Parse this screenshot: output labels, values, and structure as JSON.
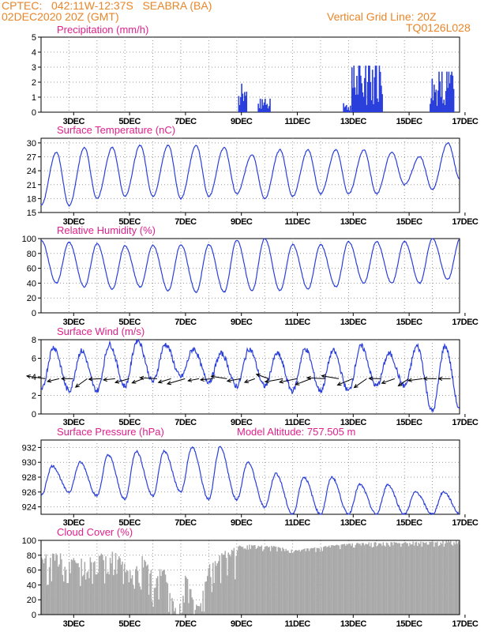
{
  "header": {
    "line1_left": "CPTEC:   042:11W-12:37S   SEABRA (BA)",
    "line2_left": "02DEC2020 20Z (GMT)",
    "line1_right": "Vertical Grid Line: 20Z",
    "line2_right": "TQ0126L028"
  },
  "colors": {
    "header": "#e8862a",
    "title": "#e0208c",
    "series": "#2a3fdc",
    "cloud": "#a9a9a9",
    "grid": "#9a9a9a"
  },
  "date_ticks": [
    "3DEC",
    "5DEC",
    "7DEC",
    "9DEC",
    "11DEC",
    "13DEC",
    "15DEC",
    "17DEC"
  ],
  "model_altitude": "Model Altitude: 757.505 m",
  "chart_data": [
    {
      "type": "bar",
      "title": "Precipitation (mm/h)",
      "ylim": [
        0,
        5
      ],
      "yticks": [
        "0",
        "1",
        "2",
        "3",
        "4",
        "5"
      ],
      "x": [
        "9DEC",
        "9DEC",
        "10DEC",
        "10DEC",
        "13DEC",
        "14DEC",
        "14DEC",
        "16DEC",
        "16DEC"
      ],
      "values": [
        1.3,
        1.9,
        0.9,
        0.7,
        0.6,
        1.5,
        3.1,
        1.6,
        2.7
      ]
    },
    {
      "type": "line",
      "title": "Surface Temperature (nC)",
      "ylim": [
        15,
        31
      ],
      "yticks": [
        "15",
        "18",
        "21",
        "24",
        "27",
        "30"
      ],
      "daily_max": [
        28,
        29,
        29,
        29.5,
        29.5,
        29.5,
        29,
        27.5,
        28.5,
        28.5,
        28.5,
        28.5,
        28,
        27,
        30
      ],
      "daily_min": [
        16.5,
        16.5,
        18,
        18.5,
        18.5,
        18,
        18.5,
        19,
        18,
        18.5,
        19,
        19,
        19,
        21,
        20,
        22
      ]
    },
    {
      "type": "line",
      "title": "Relative Humidity (%)",
      "ylim": [
        0,
        100
      ],
      "yticks": [
        "0",
        "20",
        "40",
        "60",
        "80",
        "100"
      ],
      "daily_max": [
        98,
        95,
        93,
        90,
        91,
        92,
        92,
        98,
        100,
        92,
        92,
        96,
        96,
        96,
        100
      ],
      "daily_min": [
        40,
        35,
        32,
        35,
        30,
        28,
        28,
        30,
        30,
        32,
        35,
        40,
        40,
        40,
        45,
        62
      ]
    },
    {
      "type": "line",
      "title": "Surface Wind (m/s)",
      "ylim": [
        0,
        8
      ],
      "yticks": [
        "0",
        "2",
        "4",
        "6",
        "8"
      ],
      "daily_max": [
        7.2,
        6.8,
        7.5,
        8,
        7.5,
        7,
        6.5,
        7,
        6.5,
        7,
        6.8,
        7.3,
        6.5,
        7.3
      ],
      "daily_min": [
        2.5,
        2.5,
        2.5,
        3,
        3.5,
        4,
        3.5,
        3,
        3,
        2.5,
        2.5,
        2.5,
        3,
        3,
        0.3
      ],
      "arrows": "wind vectors (easterly)"
    },
    {
      "type": "line",
      "title": "Surface Pressure (hPa)",
      "ylim": [
        923,
        933
      ],
      "yticks": [
        "924",
        "926",
        "928",
        "930",
        "932"
      ],
      "daily_max": [
        929.5,
        930,
        931,
        931.5,
        931.5,
        932,
        932,
        930,
        928.5,
        928,
        928,
        927,
        927,
        926
      ],
      "daily_min": [
        925.5,
        926,
        925.5,
        925,
        925.5,
        926,
        925,
        925,
        924,
        923,
        923,
        923,
        923,
        923
      ]
    },
    {
      "type": "area",
      "title": "Cloud Cover (%)",
      "ylim": [
        0,
        100
      ],
      "yticks": [
        "0",
        "20",
        "40",
        "60",
        "80",
        "100"
      ],
      "x": [
        "2DEC",
        "3DEC",
        "5DEC",
        "6DEC",
        "7DEC",
        "7DEC",
        "8DEC",
        "9DEC",
        "11DEC",
        "13DEC",
        "15DEC",
        "17DEC"
      ],
      "values": [
        80,
        88,
        88,
        70,
        20,
        5,
        60,
        90,
        90,
        95,
        98,
        100
      ]
    }
  ]
}
